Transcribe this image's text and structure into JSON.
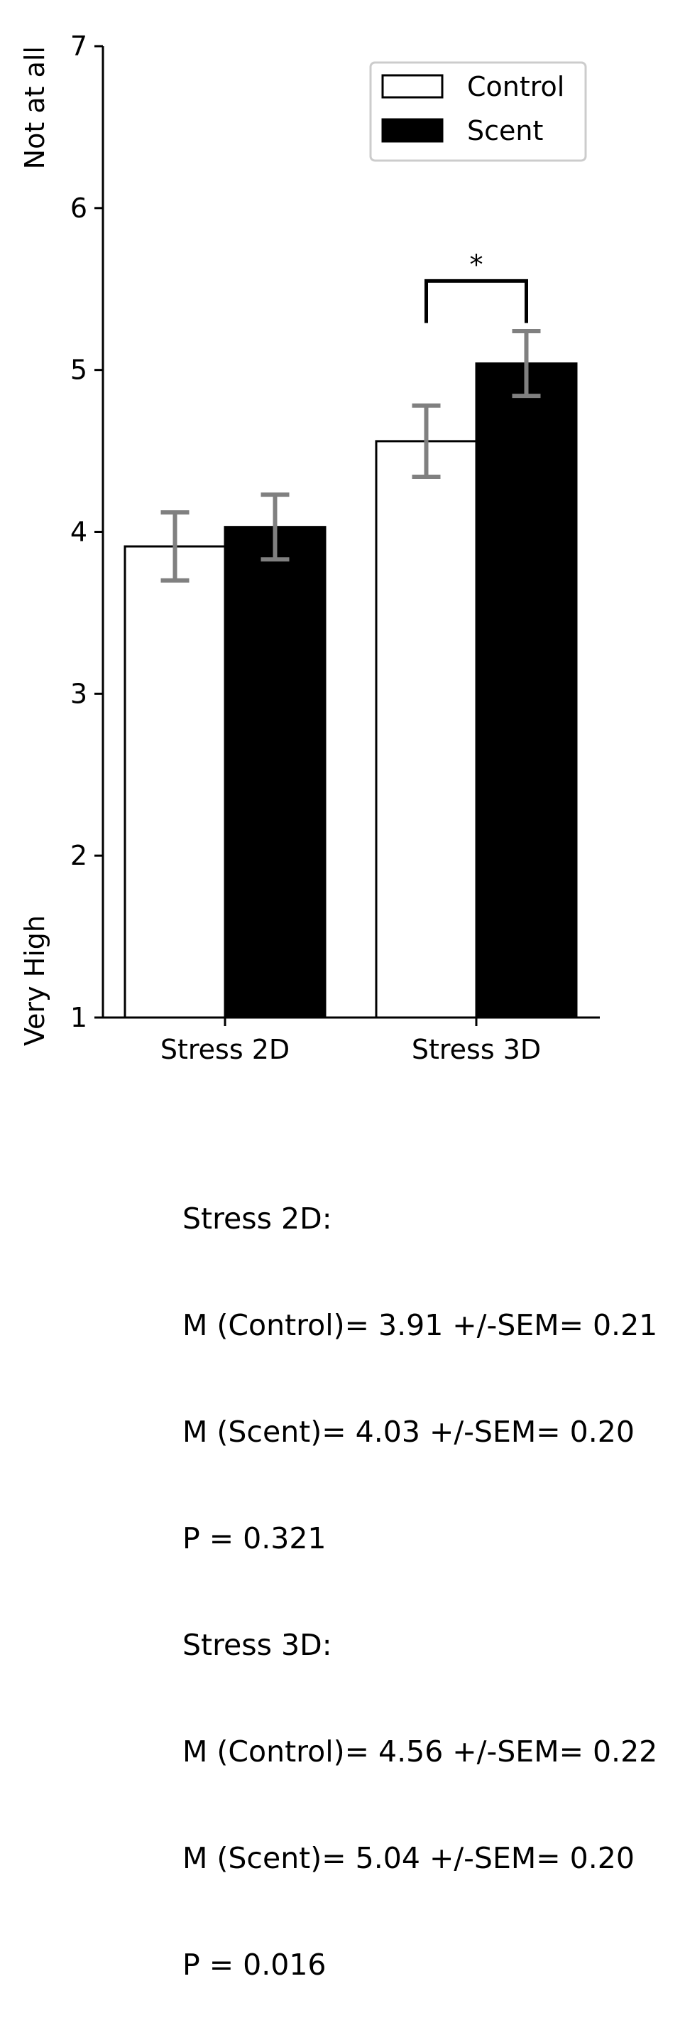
{
  "chart_data": {
    "type": "bar",
    "categories": [
      "Stress 2D",
      "Stress 3D"
    ],
    "series": [
      {
        "name": "Control",
        "values": [
          3.91,
          4.56
        ],
        "sem": [
          0.21,
          0.22
        ],
        "fill": "#ffffff",
        "edge": "#000000"
      },
      {
        "name": "Scent",
        "values": [
          4.03,
          5.04
        ],
        "sem": [
          0.2,
          0.2
        ],
        "fill": "#000000",
        "edge": "#000000"
      }
    ],
    "ylim": [
      1,
      7
    ],
    "yticks": [
      "1",
      "2",
      "3",
      "4",
      "5",
      "6",
      "7"
    ],
    "ylabel_top": "Not at all",
    "ylabel_bottom": "Very High",
    "legend_position": "top-right",
    "errorbar_color": "#808080",
    "significance": {
      "category": "Stress 3D",
      "label": "*"
    },
    "grid": false
  },
  "stats": {
    "lines": [
      "Stress 2D:",
      "M (Control)= 3.91 +/-SEM= 0.21",
      "M (Scent)= 4.03 +/-SEM= 0.20",
      "P = 0.321",
      "Stress 3D:",
      "M (Control)= 4.56 +/-SEM= 0.22",
      "M (Scent)= 5.04 +/-SEM= 0.20",
      "P = 0.016"
    ]
  }
}
